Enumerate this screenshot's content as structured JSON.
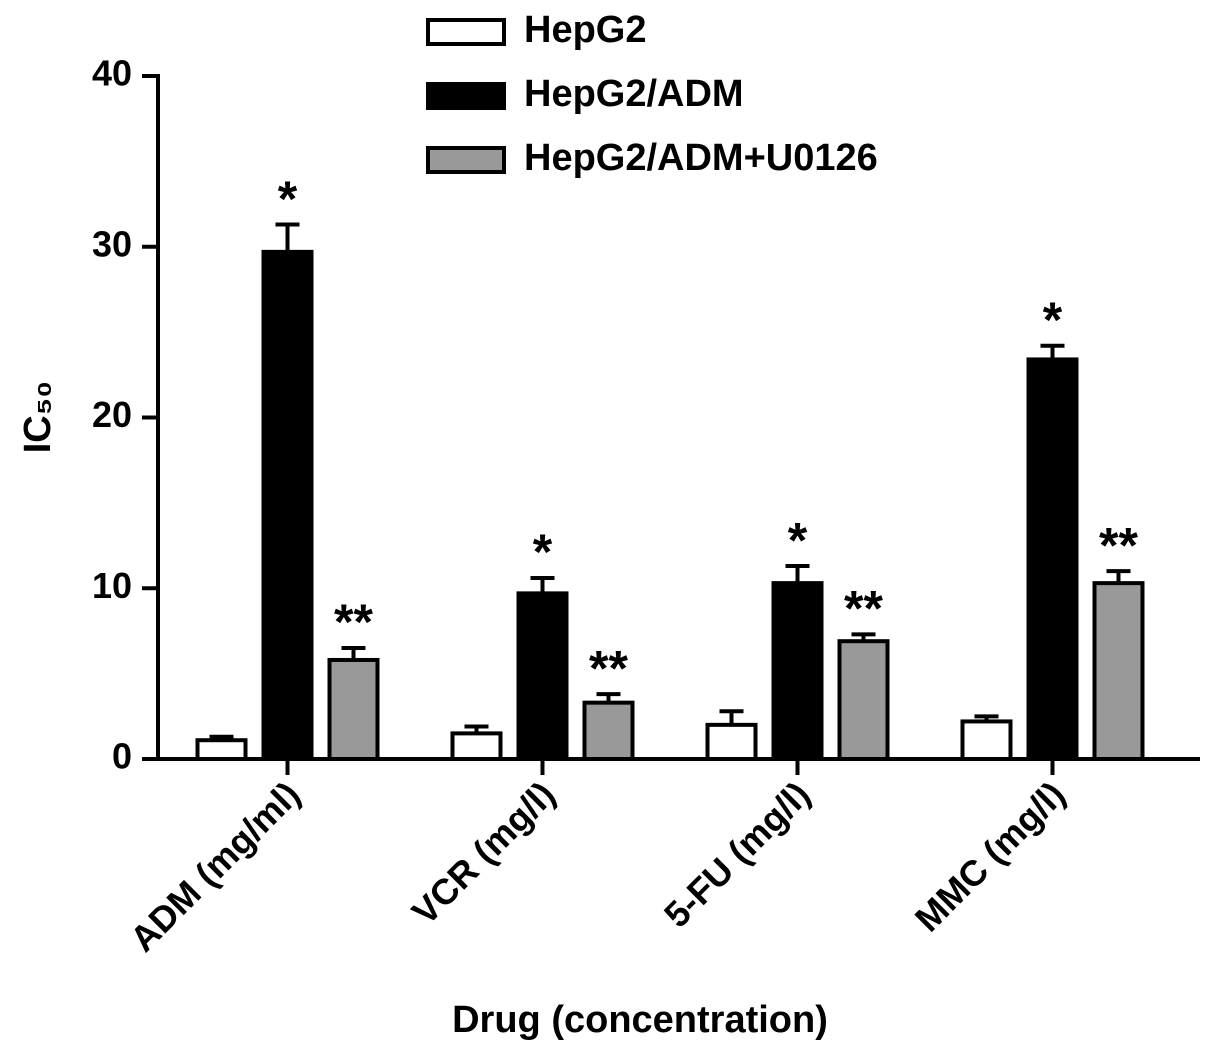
{
  "chart_data": {
    "type": "bar",
    "y_label": "IC₅₀",
    "x_label": "Drug (concentration)",
    "categories": [
      "ADM (mg/ml)",
      "VCR (mg/l)",
      "5-FU (mg/l)",
      "MMC (mg/l)"
    ],
    "series": [
      {
        "name": "HepG2",
        "color": "#ffffff",
        "values": [
          1.1,
          1.5,
          2.0,
          2.2
        ],
        "errors": [
          0.2,
          0.4,
          0.8,
          0.3
        ]
      },
      {
        "name": "HepG2/ADM",
        "color": "#000000",
        "values": [
          29.7,
          9.7,
          10.3,
          23.4
        ],
        "errors": [
          1.6,
          0.9,
          1.0,
          0.8
        ],
        "annotations": [
          "*",
          "*",
          "*",
          "*"
        ]
      },
      {
        "name": "HepG2/ADM+U0126",
        "color": "#999999",
        "values": [
          5.8,
          3.3,
          6.9,
          10.3
        ],
        "errors": [
          0.7,
          0.5,
          0.4,
          0.7
        ],
        "annotations": [
          "**",
          "**",
          "**",
          "**"
        ]
      }
    ],
    "ylim": [
      0,
      40
    ],
    "yticks": [
      0,
      10,
      20,
      30,
      40
    ],
    "grid": false,
    "legend": "top"
  }
}
